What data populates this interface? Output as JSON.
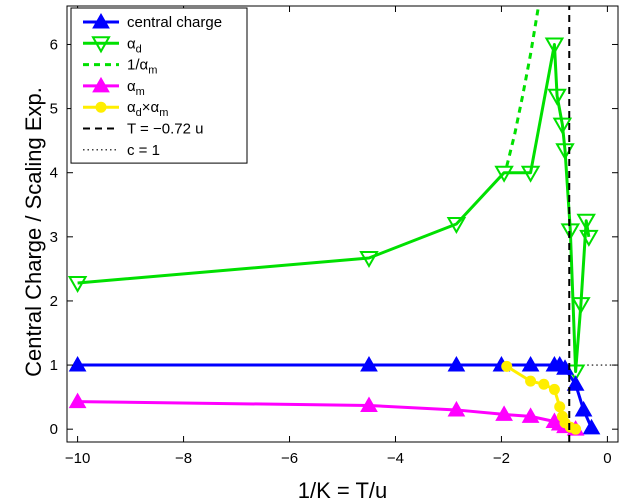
{
  "chart_data": {
    "type": "line",
    "xlabel": "1/K = T/u",
    "ylabel": "Central Charge / Scaling Exp.",
    "xlim": [
      -10.2,
      0.2
    ],
    "ylim": [
      -0.2,
      6.6
    ],
    "xticks": [
      -10,
      -8,
      -6,
      -4,
      -2,
      0
    ],
    "yticks": [
      0,
      1,
      2,
      3,
      4,
      5,
      6
    ],
    "xtick_labels": [
      "−10",
      "−8",
      "−6",
      "−4",
      "−2",
      "0"
    ],
    "ytick_labels": [
      "0",
      "1",
      "2",
      "3",
      "4",
      "5",
      "6"
    ],
    "grid": false,
    "legend_position": "top-left",
    "series": [
      {
        "key": "central",
        "name": "central charge",
        "color": "#0000ff",
        "marker": "triangle-up",
        "line": "solid",
        "x": [
          -10,
          -4.5,
          -2.85,
          -2.0,
          -1.45,
          -1.0,
          -0.9,
          -0.8,
          -0.6,
          -0.45,
          -0.3
        ],
        "y": [
          1.0,
          1.0,
          1.0,
          1.0,
          1.0,
          1.0,
          1.0,
          0.95,
          0.7,
          0.3,
          0.02
        ]
      },
      {
        "key": "alpha_d",
        "name": "α_d",
        "color": "#00e000",
        "marker": "triangle-down",
        "line": "solid",
        "x": [
          -10,
          -4.5,
          -2.85,
          -1.95,
          -1.45,
          -1.0,
          -0.95,
          -0.85,
          -0.8,
          -0.7,
          -0.6,
          -0.5,
          -0.4,
          -0.35
        ],
        "y": [
          2.28,
          2.67,
          3.2,
          4.0,
          4.0,
          6.0,
          5.2,
          4.75,
          4.35,
          3.1,
          0.9,
          1.95,
          3.25,
          3.0
        ]
      },
      {
        "key": "inv_alpha_m",
        "name": "1/α_m",
        "color": "#00e000",
        "marker": "none",
        "line": "dashed",
        "x": [
          -1.9,
          -1.75,
          -1.6,
          -1.45,
          -1.3
        ],
        "y": [
          4.1,
          4.6,
          5.2,
          5.85,
          6.6
        ]
      },
      {
        "key": "alpha_m",
        "name": "α_m",
        "color": "#ff00ff",
        "marker": "triangle-up",
        "line": "solid",
        "x": [
          -10,
          -4.5,
          -2.85,
          -1.95,
          -1.45,
          -1.0,
          -0.9,
          -0.8,
          -0.6
        ],
        "y": [
          0.43,
          0.37,
          0.3,
          0.23,
          0.2,
          0.12,
          0.08,
          0.04,
          0.0
        ]
      },
      {
        "key": "alpha_dm",
        "name": "α_d×α_m",
        "color": "#ffee00",
        "marker": "circle",
        "line": "solid",
        "x": [
          -1.9,
          -1.45,
          -1.2,
          -1.0,
          -0.9,
          -0.85,
          -0.8,
          -0.7,
          -0.6
        ],
        "y": [
          0.98,
          0.75,
          0.7,
          0.62,
          0.35,
          0.2,
          0.1,
          0.03,
          0.0
        ]
      },
      {
        "key": "t_line",
        "name": "T = −0.72 u",
        "color": "#000000",
        "marker": "none",
        "line": "dashed",
        "x": [
          -0.72,
          -0.72
        ],
        "y": [
          -0.2,
          6.6
        ]
      },
      {
        "key": "c_line",
        "name": "c = 1",
        "color": "#000000",
        "marker": "none",
        "line": "dotted",
        "x": [
          -0.72,
          0.2
        ],
        "y": [
          1.0,
          1.0
        ]
      }
    ]
  }
}
